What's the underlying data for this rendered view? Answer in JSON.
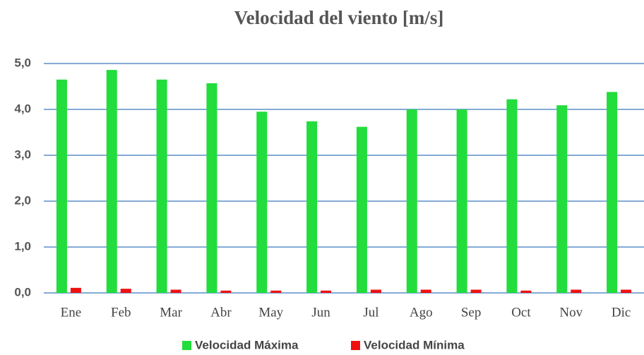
{
  "chart_data": {
    "type": "bar",
    "title": "Velocidad del viento [m/s]",
    "categories": [
      "Ene",
      "Feb",
      "Mar",
      "Abr",
      "May",
      "Jun",
      "Jul",
      "Ago",
      "Sep",
      "Oct",
      "Nov",
      "Dic"
    ],
    "series": [
      {
        "name": "Velocidad Máxima",
        "color": "#22dd3c",
        "values": [
          4.65,
          4.86,
          4.65,
          4.57,
          3.95,
          3.74,
          3.62,
          4.0,
          4.0,
          4.22,
          4.09,
          4.38
        ]
      },
      {
        "name": "Velocidad Mínima",
        "color": "#ee1111",
        "values": [
          0.11,
          0.09,
          0.07,
          0.05,
          0.05,
          0.05,
          0.07,
          0.07,
          0.07,
          0.05,
          0.07,
          0.07
        ]
      }
    ],
    "ylim": [
      0,
      5
    ],
    "yticks": [
      {
        "value": 0,
        "label": "0,0"
      },
      {
        "value": 1,
        "label": "1,0"
      },
      {
        "value": 2,
        "label": "2,0"
      },
      {
        "value": 3,
        "label": "3,0"
      },
      {
        "value": 4,
        "label": "4,0"
      },
      {
        "value": 5,
        "label": "5,0"
      }
    ],
    "grid": true,
    "legend": "bottom"
  }
}
